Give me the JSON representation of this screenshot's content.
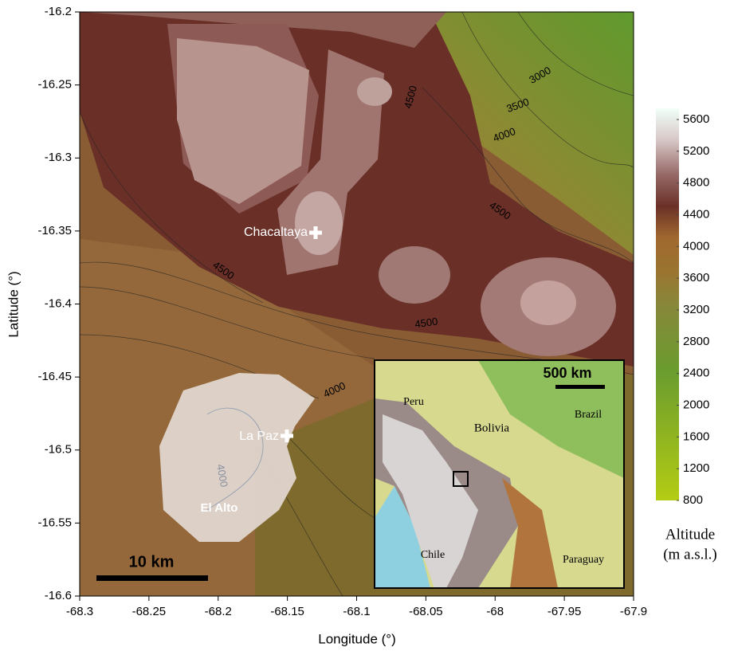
{
  "axes": {
    "xlabel": "Longitude (°)",
    "ylabel": "Latitude (°)",
    "xlim": [
      -68.3,
      -67.9
    ],
    "ylim": [
      -16.6,
      -16.2
    ],
    "xticks": [
      -68.3,
      -68.25,
      -68.2,
      -68.15,
      -68.1,
      -68.05,
      -68,
      -67.95,
      -67.9
    ],
    "yticks": [
      -16.2,
      -16.25,
      -16.3,
      -16.35,
      -16.4,
      -16.45,
      -16.5,
      -16.55,
      -16.6
    ]
  },
  "colorbar": {
    "title": [
      "Altitude",
      "(m a.s.l.)"
    ],
    "lim": [
      800,
      5600
    ],
    "ticks": [
      800,
      1200,
      1600,
      2000,
      2400,
      2800,
      3200,
      3600,
      4000,
      4400,
      4800,
      5200,
      5600
    ]
  },
  "contour_labels": [
    3000,
    3500,
    4000,
    4500,
    4500,
    4500,
    4500,
    4000,
    4000
  ],
  "places": [
    "Chacaltaya",
    "La Paz",
    "El Alto"
  ],
  "scale_bar": "10 km",
  "inset": {
    "scale_bar": "500 km",
    "countries": [
      "Peru",
      "Bolivia",
      "Brazil",
      "Chile",
      "Paraguay"
    ]
  }
}
